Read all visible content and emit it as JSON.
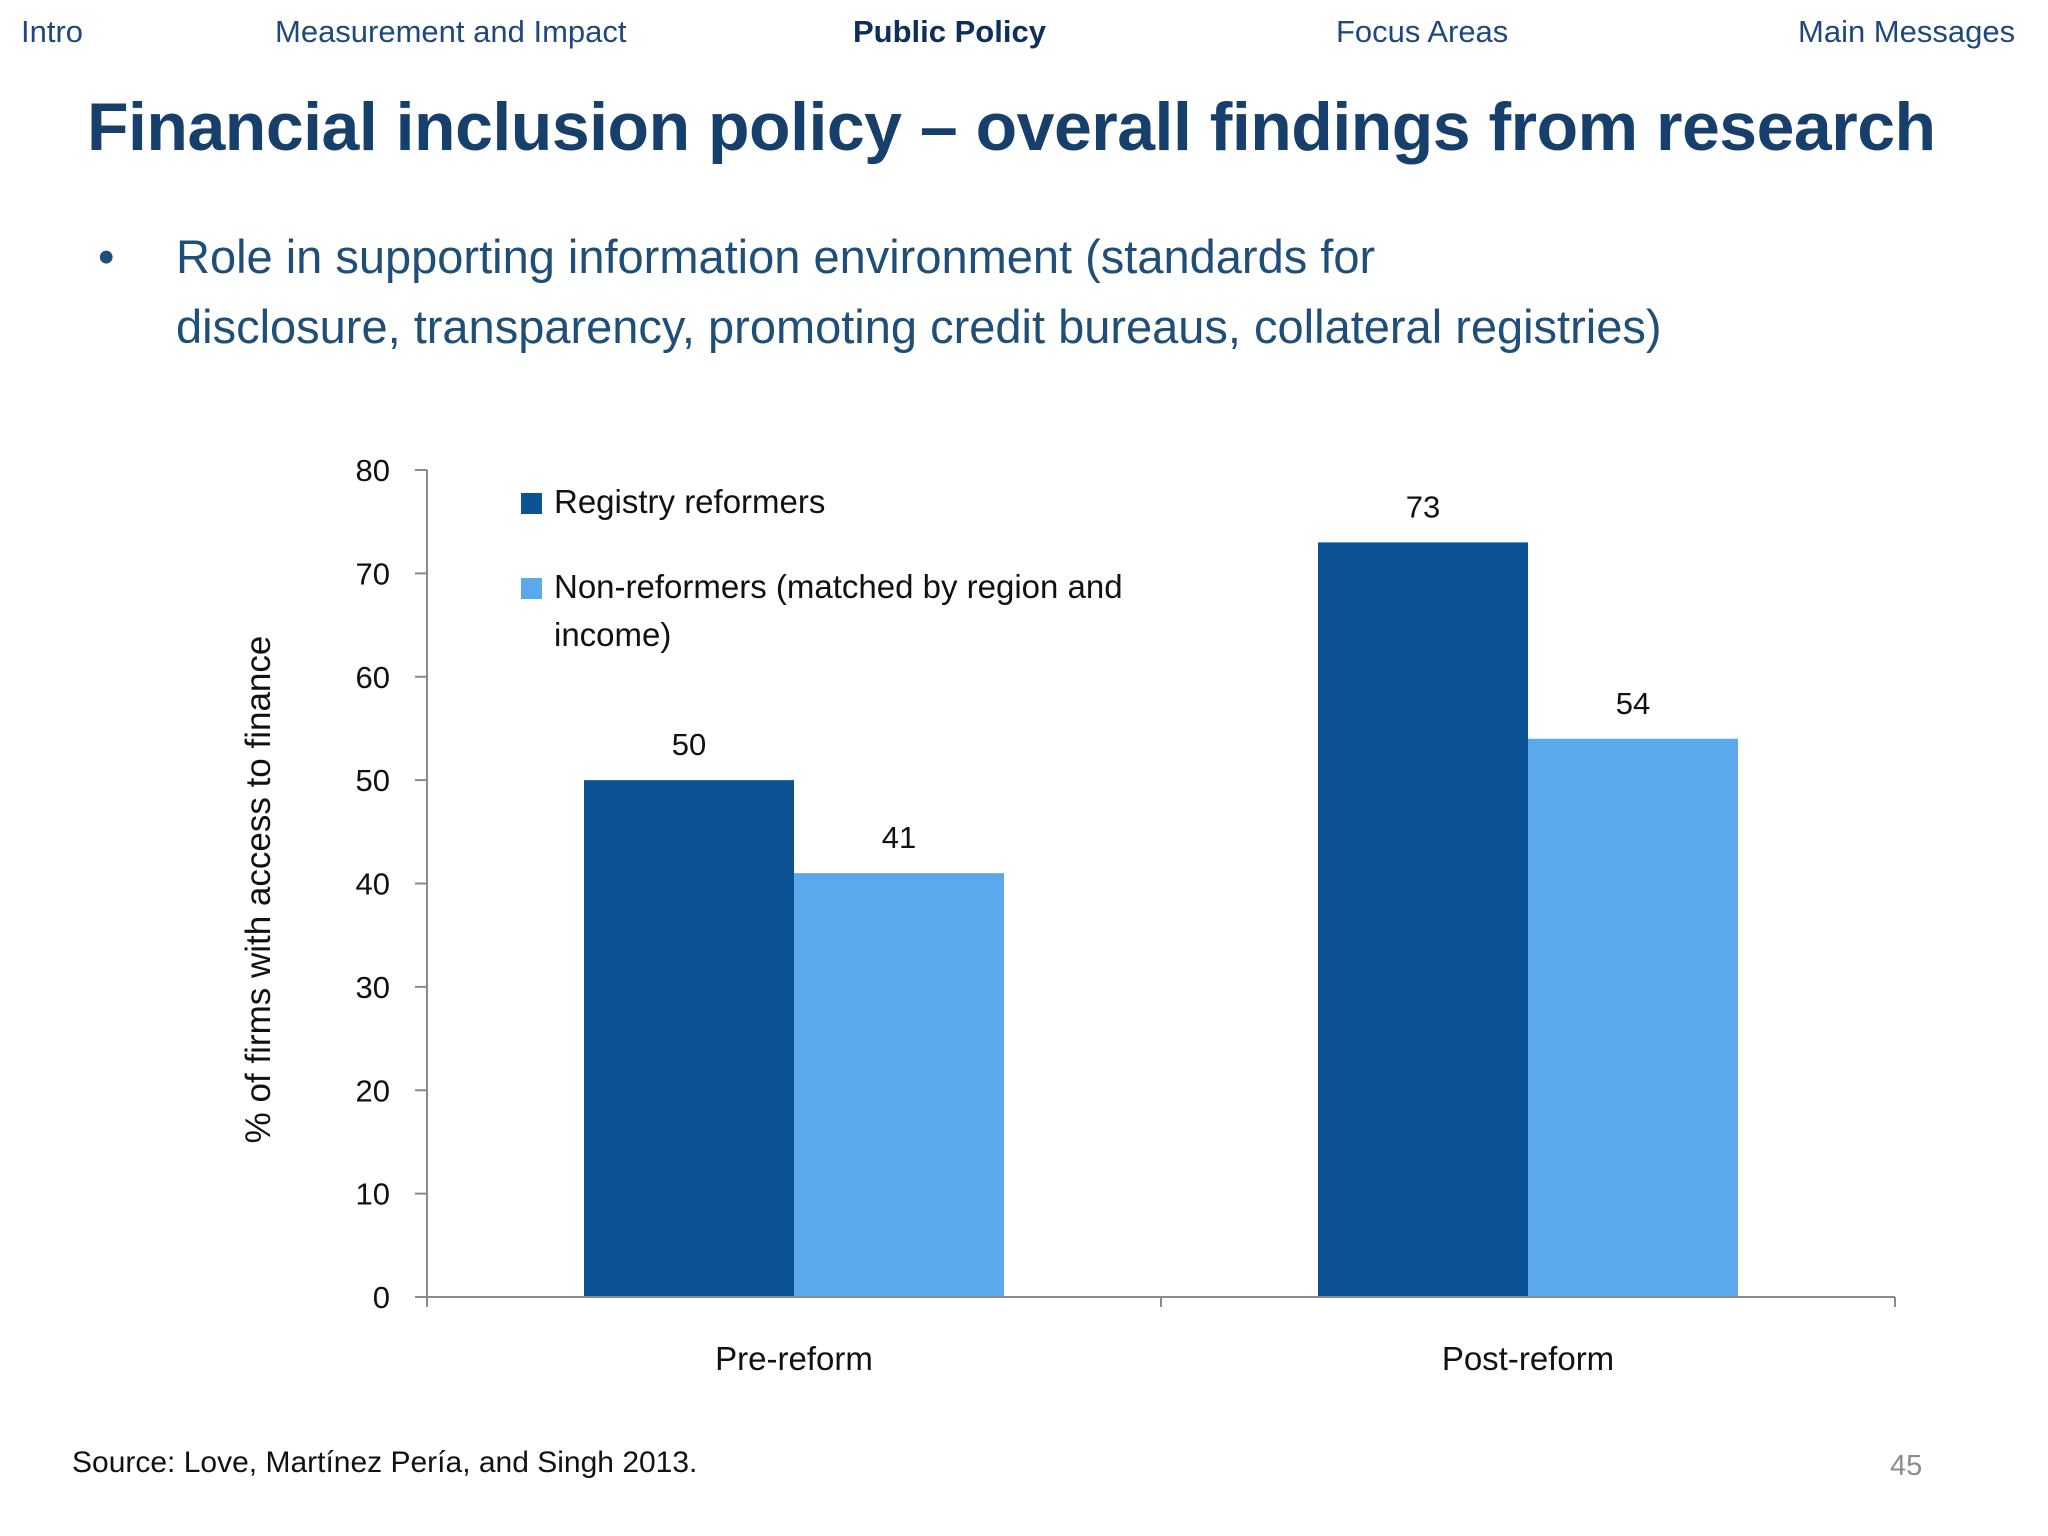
{
  "nav": {
    "items": [
      "Intro",
      "Measurement and Impact",
      "Public Policy",
      "Focus Areas",
      "Main Messages"
    ],
    "active": "Public Policy"
  },
  "title": "Financial inclusion policy – overall findings from research",
  "bullet": {
    "marker": "•",
    "line1": "Role in supporting information environment (standards for",
    "line2": "disclosure,  transparency, promoting credit bureaus, collateral registries)"
  },
  "chart_data": {
    "type": "bar",
    "categories": [
      "Pre-reform",
      "Post-reform"
    ],
    "series": [
      {
        "name": "Registry reformers",
        "values": [
          50,
          73
        ],
        "color": "#0b5394"
      },
      {
        "name": "Non-reformers (matched by region and income)",
        "name_lines": [
          "Non-reformers (matched by region and",
          "income)"
        ],
        "values": [
          41,
          54
        ],
        "color": "#5ba8ed"
      }
    ],
    "ylabel": "% of firms with access to finance",
    "xlabel": "",
    "ylim": [
      0,
      80
    ],
    "yticks": [
      0,
      10,
      20,
      30,
      40,
      50,
      60,
      70,
      80
    ],
    "grid": false,
    "legend": "top-left",
    "data_labels": true
  },
  "source": "Source: Love, Martínez Pería, and Singh 2013.",
  "page_number": "45",
  "colors": {
    "title": "#173f6b",
    "nav": "#1f497d",
    "bullet": "#1f4e79",
    "series_dark": "#0b5394",
    "series_light": "#5ba8ed"
  }
}
